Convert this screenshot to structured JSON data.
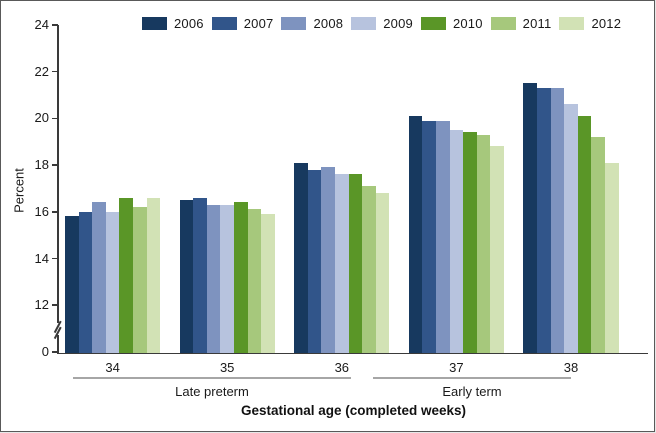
{
  "chart_data": {
    "type": "bar",
    "title": "",
    "ylabel": "Percent",
    "xlabel": "Gestational age (completed weeks)",
    "categories": [
      "34",
      "35",
      "36",
      "37",
      "38"
    ],
    "series": [
      {
        "name": "2006",
        "color": "#17395f",
        "values": [
          15.8,
          16.5,
          18.1,
          20.1,
          21.5
        ]
      },
      {
        "name": "2007",
        "color": "#31558a",
        "values": [
          16.0,
          16.6,
          17.8,
          19.9,
          21.3
        ]
      },
      {
        "name": "2008",
        "color": "#7e93bf",
        "values": [
          16.4,
          16.3,
          17.9,
          19.9,
          21.3
        ]
      },
      {
        "name": "2009",
        "color": "#b7c3de",
        "values": [
          16.0,
          16.3,
          17.6,
          19.5,
          20.6
        ]
      },
      {
        "name": "2010",
        "color": "#5a9627",
        "values": [
          16.6,
          16.4,
          17.6,
          19.4,
          20.1
        ]
      },
      {
        "name": "2011",
        "color": "#a6c87c",
        "values": [
          16.2,
          16.1,
          17.1,
          19.3,
          19.2
        ]
      },
      {
        "name": "2012",
        "color": "#d2e2b5",
        "values": [
          16.6,
          15.9,
          16.8,
          18.8,
          18.1
        ]
      }
    ],
    "yticks": [
      24,
      22,
      20,
      18,
      16,
      14,
      12
    ],
    "y_origin_label": "0",
    "y_axis_break": true,
    "ylim_display": [
      12,
      24
    ],
    "legend_position": "top",
    "grid": false,
    "group_brackets": [
      {
        "label": "Late preterm",
        "weeks": [
          "34",
          "35",
          "36"
        ]
      },
      {
        "label": "Early term",
        "weeks": [
          "37",
          "38"
        ]
      }
    ]
  }
}
